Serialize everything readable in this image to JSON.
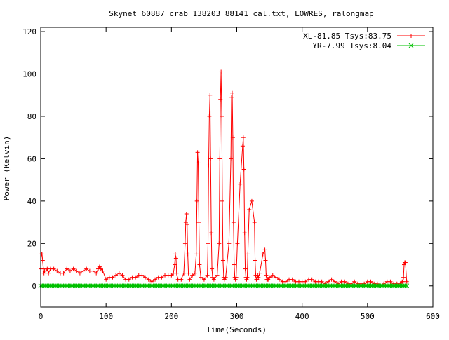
{
  "chart_data": {
    "type": "line",
    "title": "Skynet_60887_crab_138203_88141_cal.txt, LOWRES, ralongmap",
    "xlabel": "Time(Seconds)",
    "ylabel": "Power (Kelvin)",
    "xlim": [
      0,
      600
    ],
    "ylim": [
      -10,
      122
    ],
    "x_ticks": [
      0,
      100,
      200,
      300,
      400,
      500,
      600
    ],
    "y_ticks": [
      0,
      20,
      40,
      60,
      80,
      100,
      120
    ],
    "grid": false,
    "legend_position": "top-right",
    "series": [
      {
        "name": "XL-81.85 Tsys:83.75",
        "color": "#ff0000",
        "marker": "plus",
        "x": [
          0,
          1,
          2,
          3,
          4,
          5,
          6,
          8,
          10,
          12,
          15,
          20,
          25,
          30,
          35,
          40,
          45,
          50,
          55,
          60,
          65,
          70,
          75,
          80,
          85,
          88,
          90,
          92,
          95,
          100,
          105,
          110,
          115,
          120,
          125,
          130,
          135,
          140,
          145,
          150,
          155,
          160,
          165,
          170,
          175,
          180,
          185,
          190,
          195,
          200,
          203,
          205,
          206,
          207,
          208,
          210,
          215,
          219,
          221,
          222,
          223,
          224,
          225,
          226,
          228,
          232,
          236,
          238,
          239,
          240,
          241,
          242,
          243,
          245,
          250,
          255,
          256,
          257,
          258,
          259,
          260,
          261,
          262,
          263,
          265,
          270,
          273,
          274,
          275,
          276,
          277,
          278,
          279,
          280,
          281,
          283,
          288,
          291,
          292,
          293,
          294,
          295,
          296,
          297,
          298,
          299,
          301,
          305,
          309,
          310,
          311,
          312,
          313,
          314,
          315,
          316,
          317,
          319,
          323,
          327,
          328,
          329,
          330,
          331,
          332,
          333,
          335,
          340,
          343,
          344,
          345,
          346,
          347,
          348,
          350,
          355,
          360,
          365,
          370,
          375,
          380,
          385,
          390,
          395,
          400,
          405,
          410,
          415,
          420,
          425,
          430,
          435,
          440,
          445,
          450,
          455,
          460,
          465,
          470,
          475,
          480,
          485,
          490,
          495,
          500,
          505,
          510,
          515,
          520,
          525,
          530,
          535,
          540,
          545,
          550,
          553,
          554,
          555,
          556,
          557,
          558,
          560
        ],
        "y": [
          8,
          15,
          15,
          12,
          8,
          6,
          7,
          7,
          8,
          6,
          8,
          8,
          7,
          6,
          6,
          8,
          7,
          8,
          7,
          6,
          7,
          8,
          7,
          7,
          6,
          8,
          9,
          8,
          7,
          3,
          4,
          4,
          5,
          6,
          5,
          3,
          3,
          4,
          4,
          5,
          5,
          4,
          3,
          2,
          3,
          4,
          4,
          5,
          5,
          5,
          6,
          10,
          15,
          13,
          6,
          3,
          3,
          6,
          20,
          30,
          34,
          29,
          15,
          6,
          3,
          5,
          6,
          15,
          40,
          63,
          58,
          30,
          10,
          4,
          3,
          5,
          20,
          57,
          80,
          90,
          60,
          25,
          8,
          4,
          3,
          5,
          20,
          60,
          88,
          101,
          80,
          40,
          12,
          4,
          3,
          4,
          20,
          60,
          89,
          91,
          70,
          30,
          10,
          4,
          3,
          4,
          20,
          48,
          66,
          70,
          55,
          25,
          8,
          4,
          3,
          4,
          15,
          36,
          40,
          30,
          12,
          5,
          3,
          3,
          5,
          4,
          6,
          15,
          17,
          12,
          5,
          3,
          3,
          3,
          4,
          5,
          4,
          3,
          2,
          2,
          3,
          3,
          2,
          2,
          2,
          2,
          3,
          3,
          2,
          2,
          2,
          1,
          2,
          3,
          2,
          1,
          2,
          2,
          1,
          1,
          2,
          1,
          1,
          1,
          2,
          2,
          1,
          1,
          0,
          1,
          2,
          2,
          1,
          1,
          1,
          2,
          2,
          4,
          10,
          11,
          11,
          2
        ]
      },
      {
        "name": "YR-7.99 Tsys:8.04",
        "color": "#00c000",
        "marker": "x",
        "x": [
          0,
          50,
          100,
          150,
          200,
          250,
          300,
          350,
          400,
          450,
          500,
          550,
          560
        ],
        "y": [
          0,
          0,
          0,
          0,
          0,
          0,
          0,
          0,
          0,
          0,
          0,
          0,
          0
        ]
      }
    ]
  }
}
